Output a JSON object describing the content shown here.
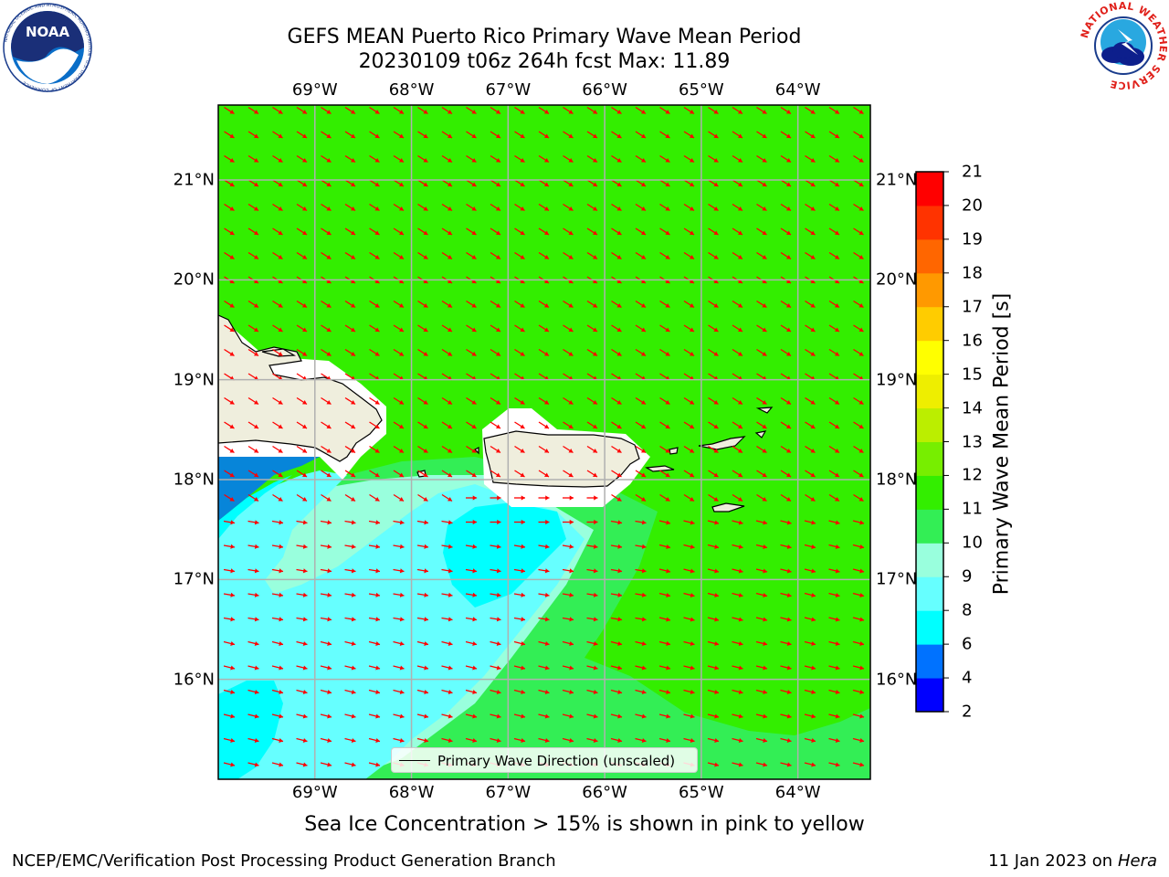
{
  "header": {
    "title_line1": "GEFS MEAN Puerto Rico Primary Wave Mean Period",
    "title_line2": "20230109 t06z 264h fcst   Max: 11.89"
  },
  "logos": {
    "left": "NOAA",
    "left_ring": "NATIONAL OCEANIC AND ATMOSPHERIC ADMINISTRATION · U.S. DEPARTMENT OF COMMERCE",
    "right_ring": "NATIONAL WEATHER SERVICE"
  },
  "map": {
    "lon_labels": [
      "69°W",
      "68°W",
      "67°W",
      "66°W",
      "65°W",
      "64°W"
    ],
    "lat_labels": [
      "21°N",
      "20°N",
      "19°N",
      "18°N",
      "17°N",
      "16°N"
    ],
    "lon_range": [
      -70.0,
      -63.25
    ],
    "lat_range": [
      15.0,
      21.75
    ],
    "arrow_color": "#ff0000",
    "land_color": "#efeedd",
    "legend_label": "Primary Wave Direction (unscaled)"
  },
  "colorbar": {
    "title": "Primary Wave Mean Period [s]",
    "tick_labels": [
      "2",
      "4",
      "6",
      "8",
      "9",
      "10",
      "11",
      "12",
      "13",
      "14",
      "15",
      "16",
      "17",
      "18",
      "19",
      "20",
      "21"
    ],
    "colors": [
      "#0000ff",
      "#0072ff",
      "#00ffff",
      "#66ffff",
      "#99ffdd",
      "#33ee55",
      "#33ee00",
      "#77ee00",
      "#bbee00",
      "#eeee00",
      "#ffff00",
      "#ffcc00",
      "#ff9900",
      "#ff6600",
      "#ff3300",
      "#ff0000"
    ]
  },
  "footer": {
    "note": "Sea Ice Concentration > 15% is shown in pink to yellow",
    "left": "NCEP/EMC/Verification Post Processing Product Generation Branch",
    "right_date": "11 Jan 2023 on ",
    "right_host": "Hera"
  }
}
